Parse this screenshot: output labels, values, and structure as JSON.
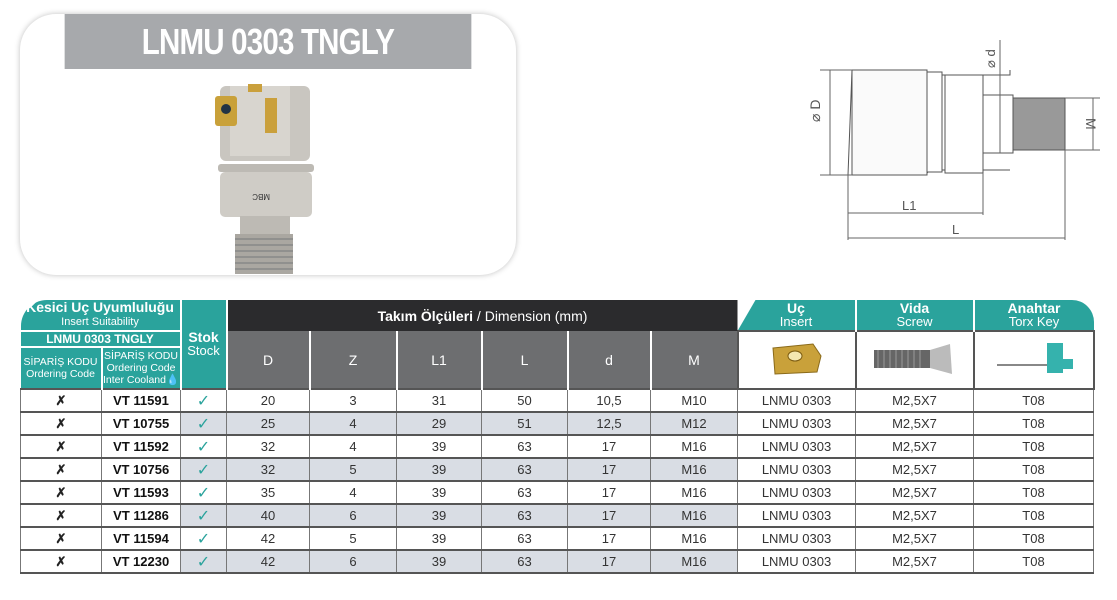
{
  "product": {
    "title": "LNMU 0303 TNGLY",
    "brand_mark": "MBC"
  },
  "drawing": {
    "labels": {
      "D": "⌀ D",
      "d": "⌀ d",
      "M": "M",
      "L1": "L1",
      "L": "L"
    }
  },
  "table": {
    "suitability_tr": "Kesici Uç Uyumluluğu",
    "suitability_en": "Insert Suitability",
    "insert_name": "LNMU 0303 TNGLY",
    "col_order_tr": "SİPARİŞ KODU",
    "col_order_en": "Ordering Code",
    "col_order2_tr": "SİPARİŞ KODU",
    "col_order2_en": "Ordering Code",
    "col_order2_en2": "Inter Cooland",
    "stock_tr": "Stok",
    "stock_en": "Stock",
    "dim_tr": "Takım Ölçüleri",
    "dim_en": " / Dimension (mm)",
    "dims": [
      "D",
      "Z",
      "L1",
      "L",
      "d",
      "M"
    ],
    "insert_tr": "Uç",
    "insert_en": "Insert",
    "screw_tr": "Vida",
    "screw_en": "Screw",
    "key_tr": "Anahtar",
    "key_en": "Torx Key",
    "accent": "#2aa39c",
    "rows": [
      {
        "std": "✗",
        "code": "VT 11591",
        "stock": "✓",
        "D": "20",
        "Z": "3",
        "L1": "31",
        "L": "50",
        "d": "10,5",
        "M": "M10",
        "insert": "LNMU 0303",
        "screw": "M2,5X7",
        "key": "T08"
      },
      {
        "std": "✗",
        "code": "VT 10755",
        "stock": "✓",
        "D": "25",
        "Z": "4",
        "L1": "29",
        "L": "51",
        "d": "12,5",
        "M": "M12",
        "insert": "LNMU 0303",
        "screw": "M2,5X7",
        "key": "T08"
      },
      {
        "std": "✗",
        "code": "VT 11592",
        "stock": "✓",
        "D": "32",
        "Z": "4",
        "L1": "39",
        "L": "63",
        "d": "17",
        "M": "M16",
        "insert": "LNMU 0303",
        "screw": "M2,5X7",
        "key": "T08"
      },
      {
        "std": "✗",
        "code": "VT 10756",
        "stock": "✓",
        "D": "32",
        "Z": "5",
        "L1": "39",
        "L": "63",
        "d": "17",
        "M": "M16",
        "insert": "LNMU 0303",
        "screw": "M2,5X7",
        "key": "T08"
      },
      {
        "std": "✗",
        "code": "VT 11593",
        "stock": "✓",
        "D": "35",
        "Z": "4",
        "L1": "39",
        "L": "63",
        "d": "17",
        "M": "M16",
        "insert": "LNMU 0303",
        "screw": "M2,5X7",
        "key": "T08"
      },
      {
        "std": "✗",
        "code": "VT 11286",
        "stock": "✓",
        "D": "40",
        "Z": "6",
        "L1": "39",
        "L": "63",
        "d": "17",
        "M": "M16",
        "insert": "LNMU 0303",
        "screw": "M2,5X7",
        "key": "T08"
      },
      {
        "std": "✗",
        "code": "VT 11594",
        "stock": "✓",
        "D": "42",
        "Z": "5",
        "L1": "39",
        "L": "63",
        "d": "17",
        "M": "M16",
        "insert": "LNMU 0303",
        "screw": "M2,5X7",
        "key": "T08"
      },
      {
        "std": "✗",
        "code": "VT 12230",
        "stock": "✓",
        "D": "42",
        "Z": "6",
        "L1": "39",
        "L": "63",
        "d": "17",
        "M": "M16",
        "insert": "LNMU 0303",
        "screw": "M2,5X7",
        "key": "T08"
      }
    ]
  }
}
